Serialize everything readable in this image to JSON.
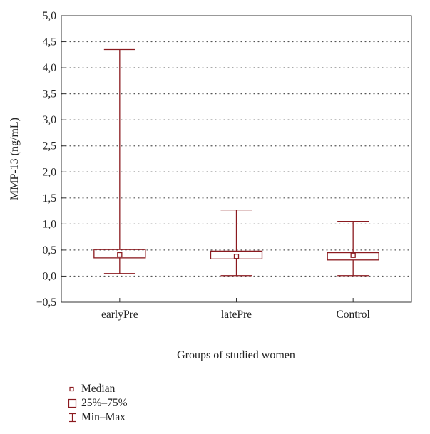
{
  "chart_data": {
    "type": "boxplot",
    "xlabel": "Groups of studied women",
    "ylabel": "MMP-13 (ng/mL)",
    "ylim": [
      -0.5,
      5.0
    ],
    "yticks": [
      -0.5,
      0.0,
      0.5,
      1.0,
      1.5,
      2.0,
      2.5,
      3.0,
      3.5,
      4.0,
      4.5,
      5.0
    ],
    "ytick_labels": [
      "−0,5",
      "0,0",
      "0,5",
      "1,0",
      "1,5",
      "2,0",
      "2,5",
      "3,0",
      "3,5",
      "4,0",
      "4,5",
      "5,0"
    ],
    "grid": "horizontal dotted",
    "color": "#8b1a1f",
    "categories": [
      "earlyPre",
      "latePre",
      "Control"
    ],
    "groups": [
      {
        "name": "earlyPre",
        "min": 0.05,
        "q1": 0.35,
        "median": 0.41,
        "q3": 0.51,
        "max": 4.35
      },
      {
        "name": "latePre",
        "min": 0.01,
        "q1": 0.33,
        "median": 0.38,
        "q3": 0.48,
        "max": 1.27
      },
      {
        "name": "Control",
        "min": 0.01,
        "q1": 0.31,
        "median": 0.4,
        "q3": 0.45,
        "max": 1.05
      }
    ],
    "legend": [
      {
        "symbol": "median",
        "label": "Median"
      },
      {
        "symbol": "box",
        "label": "25%–75%"
      },
      {
        "symbol": "whisker",
        "label": "Min–Max"
      }
    ]
  }
}
